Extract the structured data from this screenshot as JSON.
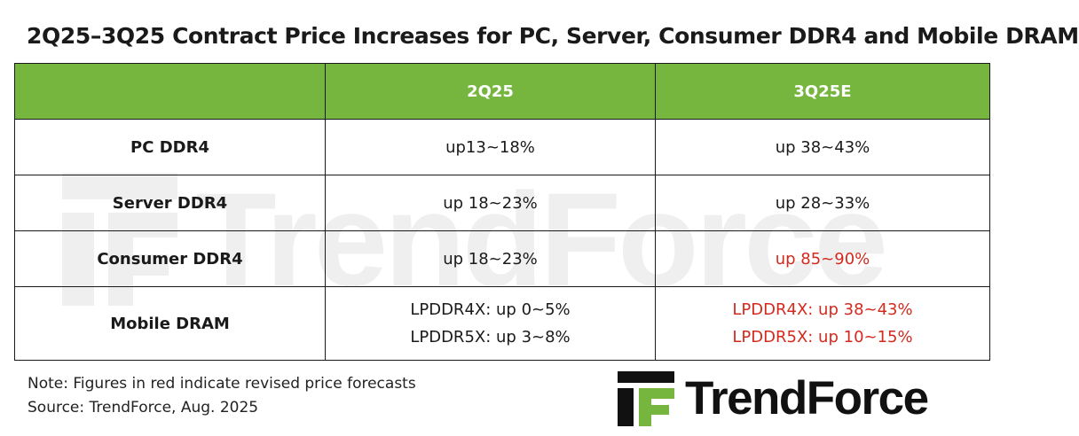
{
  "title": "2Q25–3Q25 Contract Price Increases for PC, Server, Consumer DDR4 and Mobile DRAM",
  "brand": {
    "name": "TrendForce",
    "watermark": "TrendForce",
    "accent": "#76b63e",
    "revised_color": "#d42a1e"
  },
  "table": {
    "headers": [
      "",
      "2Q25",
      "3Q25E"
    ],
    "rows": [
      {
        "label": "PC DDR4",
        "q2": [
          "up13~18%"
        ],
        "q3": [
          "up 38~43%"
        ],
        "q3_revised": false
      },
      {
        "label": "Server DDR4",
        "q2": [
          "up 18~23%"
        ],
        "q3": [
          "up 28~33%"
        ],
        "q3_revised": false
      },
      {
        "label": "Consumer DDR4",
        "q2": [
          "up 18~23%"
        ],
        "q3": [
          "up 85~90%"
        ],
        "q3_revised": true
      },
      {
        "label": "Mobile DRAM",
        "q2": [
          "LPDDR4X: up 0~5%",
          "LPDDR5X: up 3~8%"
        ],
        "q3": [
          "LPDDR4X: up 38~43%",
          "LPDDR5X: up 10~15%"
        ],
        "q3_revised": true
      }
    ]
  },
  "notes": {
    "note": "Note: Figures in red indicate revised price forecasts",
    "source": "Source: TrendForce, Aug. 2025"
  }
}
